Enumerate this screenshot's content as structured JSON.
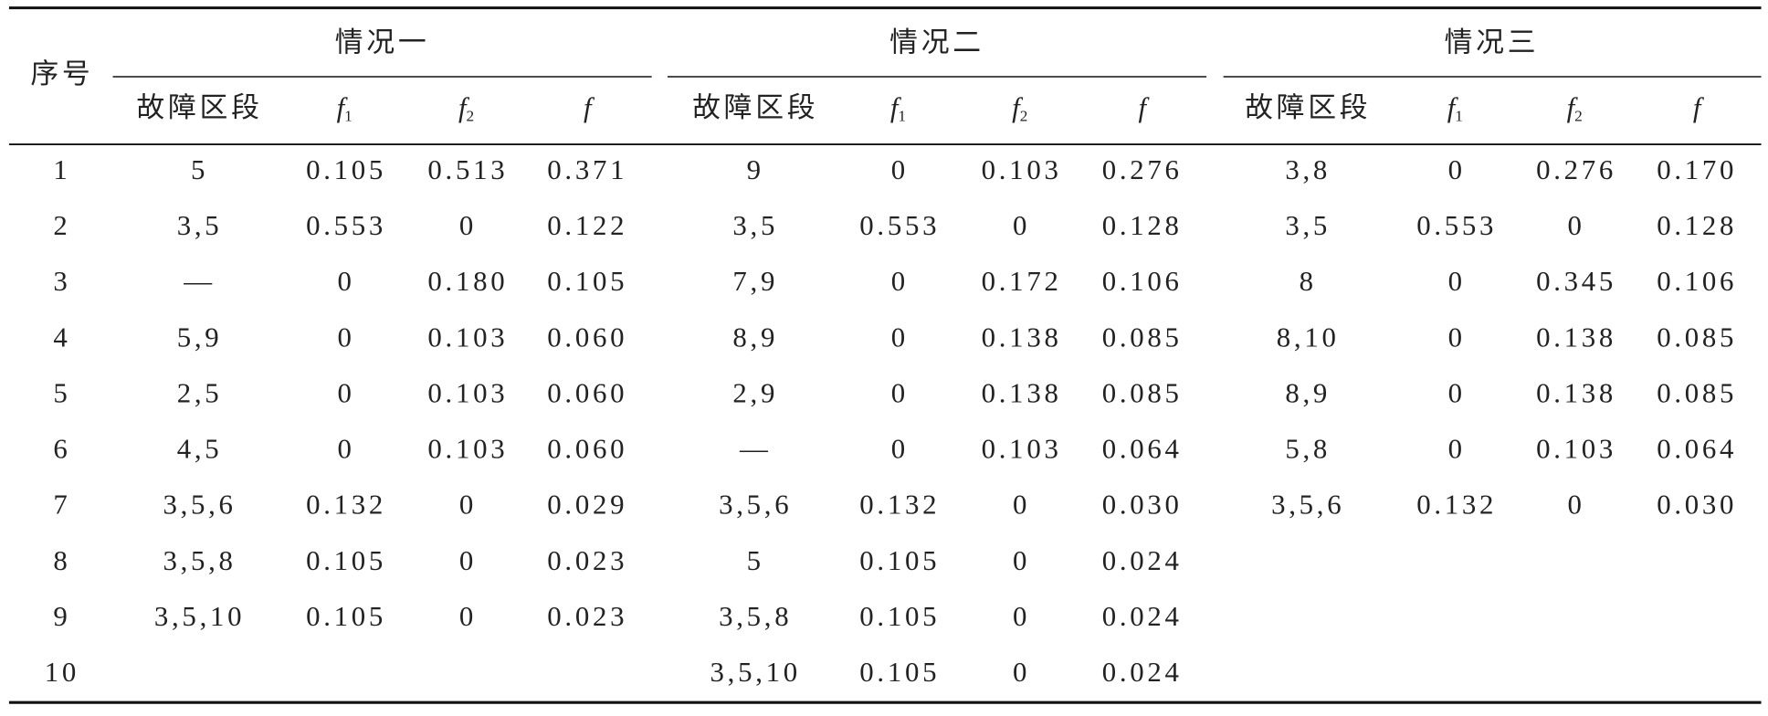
{
  "table": {
    "corner": "序号",
    "numbers": [
      "1",
      "2",
      "3",
      "4",
      "5",
      "6",
      "7",
      "8",
      "9",
      "10"
    ],
    "groups": [
      {
        "title": "情况一",
        "columns": [
          {
            "label": "故障区段"
          },
          {
            "base": "f",
            "sub": "1"
          },
          {
            "base": "f",
            "sub": "2"
          },
          {
            "base": "f"
          }
        ],
        "rows": [
          [
            "5",
            "0.105",
            "0.513",
            "0.371"
          ],
          [
            "3,5",
            "0.553",
            "0",
            "0.122"
          ],
          [
            "—",
            "0",
            "0.180",
            "0.105"
          ],
          [
            "5,9",
            "0",
            "0.103",
            "0.060"
          ],
          [
            "2,5",
            "0",
            "0.103",
            "0.060"
          ],
          [
            "4,5",
            "0",
            "0.103",
            "0.060"
          ],
          [
            "3,5,6",
            "0.132",
            "0",
            "0.029"
          ],
          [
            "3,5,8",
            "0.105",
            "0",
            "0.023"
          ],
          [
            "3,5,10",
            "0.105",
            "0",
            "0.023"
          ]
        ]
      },
      {
        "title": "情况二",
        "columns": [
          {
            "label": "故障区段"
          },
          {
            "base": "f",
            "sub": "1"
          },
          {
            "base": "f",
            "sub": "2"
          },
          {
            "base": "f"
          }
        ],
        "rows": [
          [
            "9",
            "0",
            "0.103",
            "0.276"
          ],
          [
            "3,5",
            "0.553",
            "0",
            "0.128"
          ],
          [
            "7,9",
            "0",
            "0.172",
            "0.106"
          ],
          [
            "8,9",
            "0",
            "0.138",
            "0.085"
          ],
          [
            "2,9",
            "0",
            "0.138",
            "0.085"
          ],
          [
            "—",
            "0",
            "0.103",
            "0.064"
          ],
          [
            "3,5,6",
            "0.132",
            "0",
            "0.030"
          ],
          [
            "5",
            "0.105",
            "0",
            "0.024"
          ],
          [
            "3,5,8",
            "0.105",
            "0",
            "0.024"
          ],
          [
            "3,5,10",
            "0.105",
            "0",
            "0.024"
          ]
        ]
      },
      {
        "title": "情况三",
        "columns": [
          {
            "label": "故障区段"
          },
          {
            "base": "f",
            "sub": "1"
          },
          {
            "base": "f",
            "sub": "2"
          },
          {
            "base": "f"
          }
        ],
        "rows": [
          [
            "3,8",
            "0",
            "0.276",
            "0.170"
          ],
          [
            "3,5",
            "0.553",
            "0",
            "0.128"
          ],
          [
            "8",
            "0",
            "0.345",
            "0.106"
          ],
          [
            "8,10",
            "0",
            "0.138",
            "0.085"
          ],
          [
            "8,9",
            "0",
            "0.138",
            "0.085"
          ],
          [
            "5,8",
            "0",
            "0.103",
            "0.064"
          ],
          [
            "3,5,6",
            "0.132",
            "0",
            "0.030"
          ]
        ]
      }
    ]
  }
}
